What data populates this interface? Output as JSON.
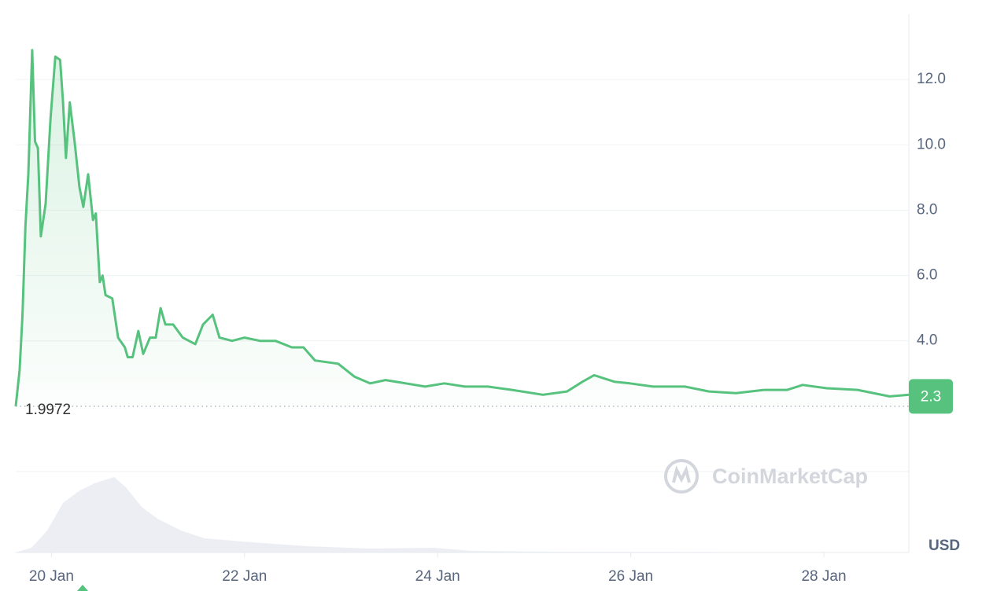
{
  "chart_data": {
    "type": "line",
    "y_label": "USD",
    "watermark": "CoinMarketCap",
    "x": [
      19.63,
      19.67,
      19.7,
      19.73,
      19.76,
      19.8,
      19.83,
      19.86,
      19.89,
      19.94,
      19.99,
      20.04,
      20.09,
      20.12,
      20.15,
      20.19,
      20.24,
      20.29,
      20.33,
      20.38,
      20.43,
      20.46,
      20.5,
      20.53,
      20.56,
      20.63,
      20.69,
      20.76,
      20.79,
      20.84,
      20.9,
      20.95,
      21.02,
      21.08,
      21.13,
      21.18,
      21.26,
      21.36,
      21.49,
      21.57,
      21.67,
      21.74,
      21.87,
      22.0,
      22.16,
      22.32,
      22.49,
      22.61,
      22.73,
      22.97,
      23.14,
      23.3,
      23.46,
      23.67,
      23.87,
      24.07,
      24.28,
      24.52,
      24.77,
      25.09,
      25.34,
      25.5,
      25.62,
      25.83,
      25.99,
      26.23,
      26.56,
      26.81,
      27.09,
      27.38,
      27.62,
      27.78,
      28.03,
      28.35,
      28.68,
      28.88
    ],
    "series": [
      {
        "color": "#56c27d",
        "values": [
          2.0,
          3.1,
          4.8,
          7.5,
          9.1,
          12.9,
          10.1,
          9.9,
          7.2,
          8.2,
          10.8,
          12.7,
          12.6,
          11.3,
          9.6,
          11.3,
          10.1,
          8.7,
          8.1,
          9.1,
          7.7,
          7.9,
          5.8,
          6.0,
          5.4,
          5.3,
          4.1,
          3.8,
          3.5,
          3.5,
          4.3,
          3.6,
          4.1,
          4.1,
          5.0,
          4.5,
          4.5,
          4.1,
          3.9,
          4.5,
          4.8,
          4.1,
          4.0,
          4.1,
          4.0,
          4.0,
          3.8,
          3.8,
          3.4,
          3.3,
          2.9,
          2.7,
          2.8,
          2.7,
          2.6,
          2.7,
          2.6,
          2.6,
          2.5,
          2.35,
          2.45,
          2.75,
          2.95,
          2.75,
          2.7,
          2.6,
          2.6,
          2.45,
          2.4,
          2.5,
          2.5,
          2.65,
          2.55,
          2.5,
          2.3,
          2.35
        ]
      }
    ],
    "baseline": 1.9972,
    "current_price": 2.3,
    "xlim": [
      19.63,
      28.88
    ],
    "xticks": [
      {
        "value": 20,
        "label": "20 Jan"
      },
      {
        "value": 22,
        "label": "22 Jan"
      },
      {
        "value": 24,
        "label": "24 Jan"
      },
      {
        "value": 26,
        "label": "26 Jan"
      },
      {
        "value": 28,
        "label": "28 Jan"
      }
    ],
    "ylim": [
      0,
      14
    ],
    "yticks": [
      {
        "value": 4,
        "label": "4.0"
      },
      {
        "value": 6,
        "label": "6.0"
      },
      {
        "value": 8,
        "label": "8.0"
      },
      {
        "value": 10,
        "label": "10.0"
      },
      {
        "value": 12,
        "label": "12.0"
      }
    ],
    "grid": true
  }
}
